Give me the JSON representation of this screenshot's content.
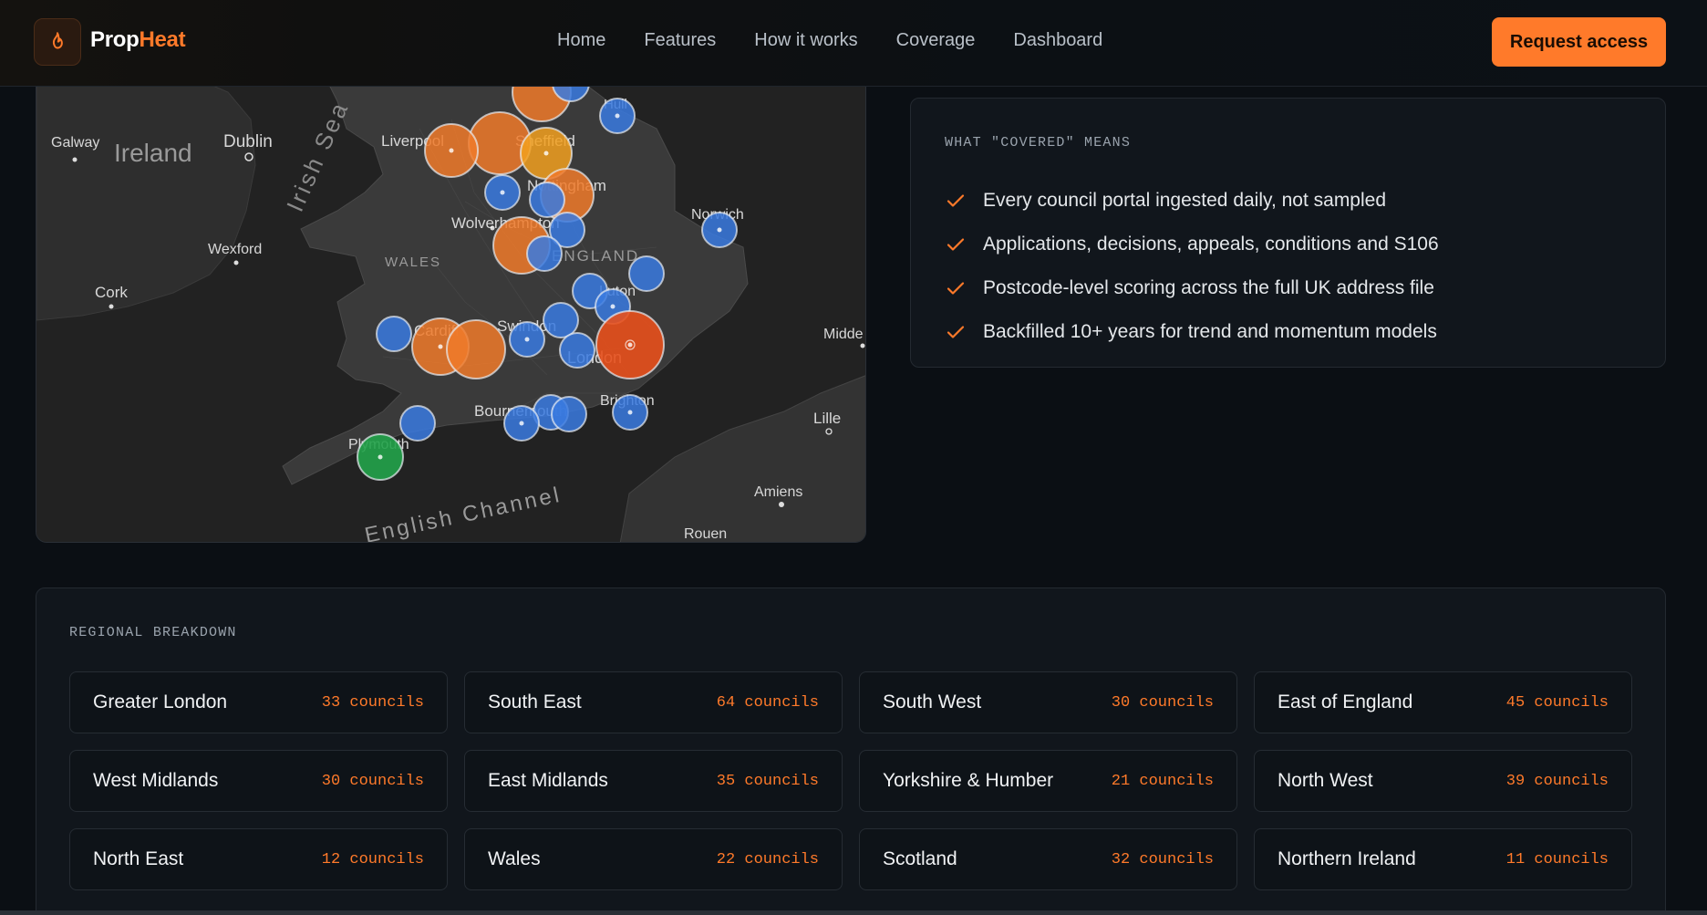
{
  "brand": {
    "part1": "Prop",
    "part2": "Heat",
    "accent": "#ff7a2a"
  },
  "nav": {
    "links": [
      "Home",
      "Features",
      "How it works",
      "Coverage",
      "Dashboard"
    ],
    "cta": "Request access"
  },
  "map": {
    "labels": {
      "galway": "Galway",
      "ireland": "Ireland",
      "dublin": "Dublin",
      "wexford": "Wexford",
      "cork": "Cork",
      "irish_sea": "Irish Sea",
      "liverpool": "Liverpool",
      "sheffield": "Sheffield",
      "hull": "Hull",
      "nottingham": "Nottingham",
      "wolverhampton": "Wolverhampton",
      "wales": "WALES",
      "england": "ENGLAND",
      "norwich": "Norwich",
      "london_n": "Luton",
      "cardiff": "Cardiff",
      "swindon": "Swindon",
      "london": "London",
      "middelburg": "Midde",
      "bournemouth": "Bournemouth",
      "brighton": "Brighton",
      "lille": "Lille",
      "plymouth": "Plymouth",
      "english_channel": "English Channel",
      "amiens": "Amiens",
      "rouen": "Rouen"
    }
  },
  "covered": {
    "title": "WHAT \"COVERED\" MEANS",
    "items": [
      "Every council portal ingested daily, not sampled",
      "Applications, decisions, appeals, conditions and S106",
      "Postcode-level scoring across the full UK address file",
      "Backfilled 10+ years for trend and momentum models"
    ]
  },
  "regional": {
    "title": "REGIONAL BREAKDOWN",
    "regions": [
      {
        "name": "Greater London",
        "count": "33 councils"
      },
      {
        "name": "South East",
        "count": "64 councils"
      },
      {
        "name": "South West",
        "count": "30 councils"
      },
      {
        "name": "East of England",
        "count": "45 councils"
      },
      {
        "name": "West Midlands",
        "count": "30 councils"
      },
      {
        "name": "East Midlands",
        "count": "35 councils"
      },
      {
        "name": "Yorkshire & Humber",
        "count": "21 councils"
      },
      {
        "name": "North West",
        "count": "39 councils"
      },
      {
        "name": "North East",
        "count": "12 councils"
      },
      {
        "name": "Wales",
        "count": "22 councils"
      },
      {
        "name": "Scotland",
        "count": "32 councils"
      },
      {
        "name": "Northern Ireland",
        "count": "11 councils"
      }
    ]
  }
}
